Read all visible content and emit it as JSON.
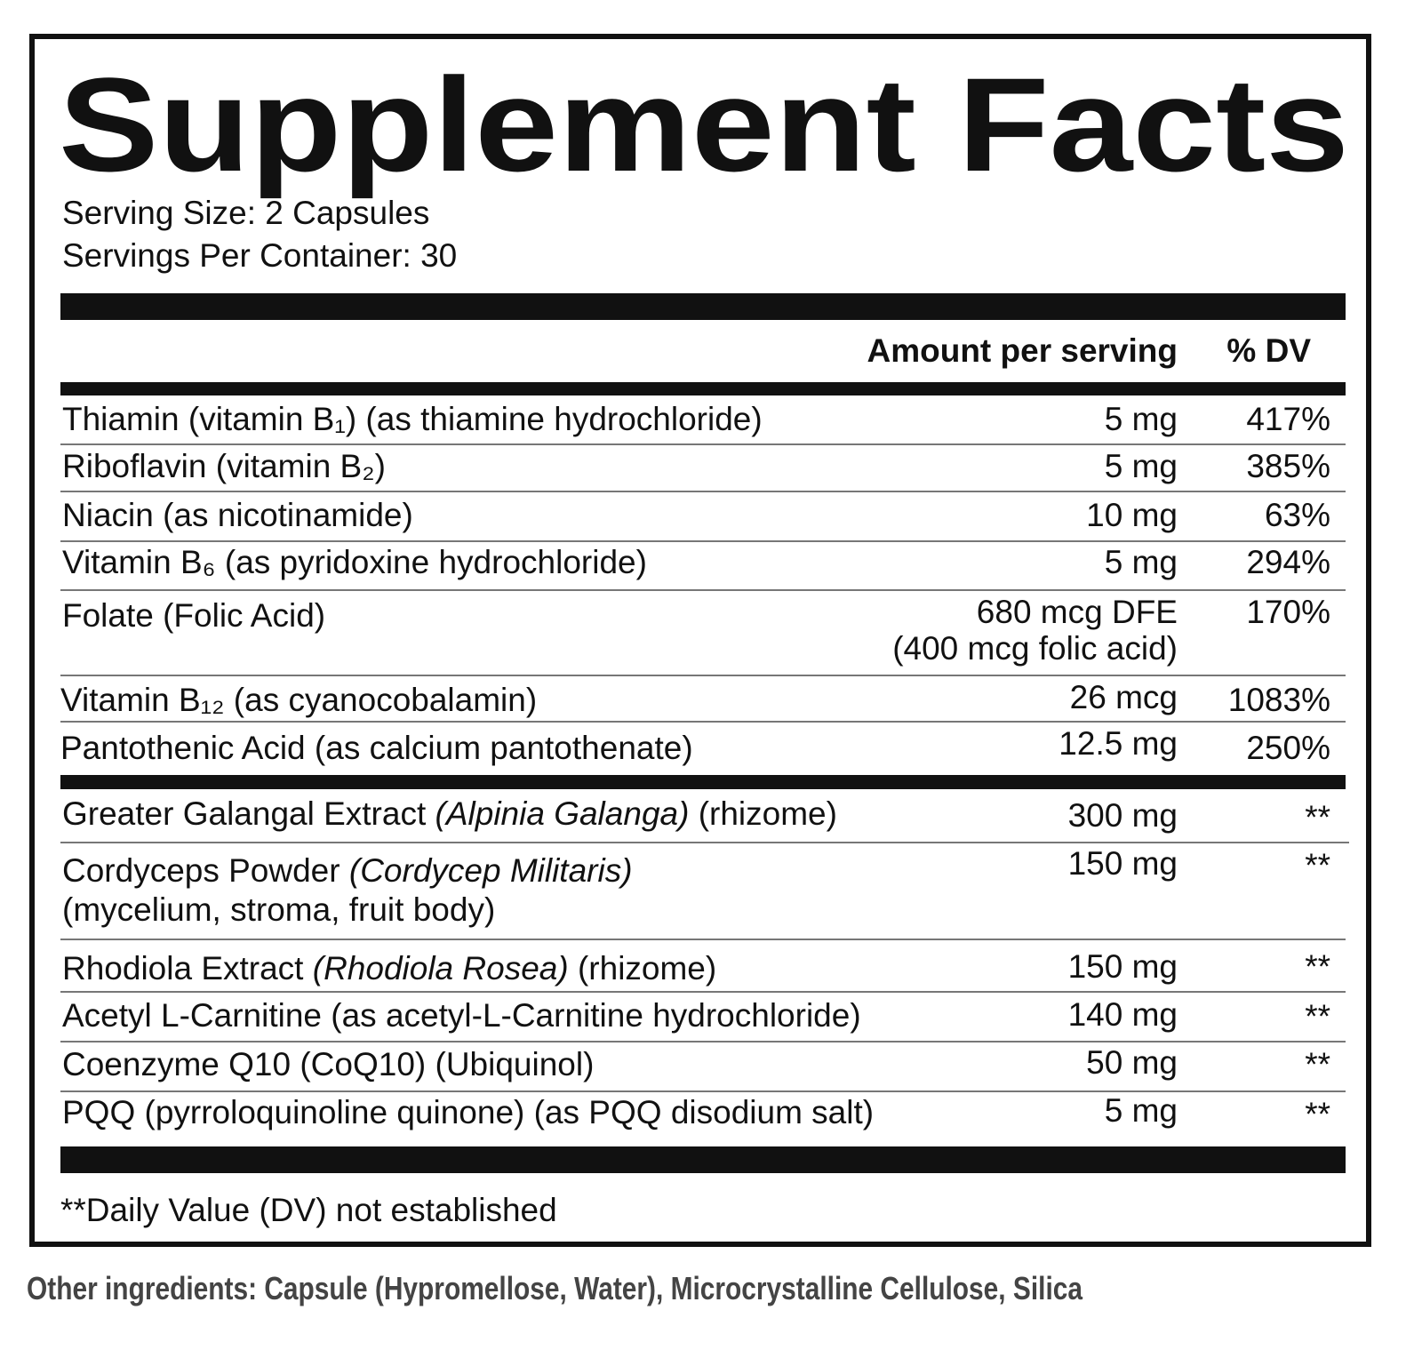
{
  "header": {
    "title": "Supplement Facts",
    "serving_size": "Serving Size: 2 Capsules",
    "servings_per_container": "Servings Per Container: 30"
  },
  "table": {
    "columns": {
      "amount": "Amount per serving",
      "dv": "% DV"
    },
    "vitamins": [
      {
        "name": "Thiamin (vitamin B₁) (as thiamine hydrochloride)",
        "amount": "5 mg",
        "dv": "417%"
      },
      {
        "name": "Riboflavin (vitamin B₂)",
        "amount": "5 mg",
        "dv": "385%"
      },
      {
        "name": "Niacin (as nicotinamide)",
        "amount": "10 mg",
        "dv": "63%"
      },
      {
        "name": "Vitamin B₆ (as pyridoxine hydrochloride)",
        "amount": "5 mg",
        "dv": "294%"
      },
      {
        "name": "Folate (Folic Acid)",
        "amount": "680 mcg DFE",
        "amount_note": "(400 mcg folic acid)",
        "dv": "170%"
      },
      {
        "name": "Vitamin B₁₂ (as cyanocobalamin)",
        "amount": "26 mcg",
        "dv": "1083%"
      },
      {
        "name": "Pantothenic Acid (as calcium pantothenate)",
        "amount": "12.5 mg",
        "dv": "250%"
      }
    ],
    "botanicals": [
      {
        "name": "Greater Galangal Extract",
        "latin": "(Alpinia Galanga)",
        "part": "(rhizome)",
        "amount": "300 mg",
        "dv": "**"
      },
      {
        "name": "Cordyceps Powder",
        "latin": "(Cordycep Militaris)",
        "part": "(mycelium, stroma, fruit body)",
        "amount": "150 mg",
        "dv": "**"
      },
      {
        "name": "Rhodiola Extract",
        "latin": "(Rhodiola Rosea)",
        "part": "(rhizome)",
        "amount": "150 mg",
        "dv": "**"
      },
      {
        "name": "Acetyl L-Carnitine (as acetyl-L-Carnitine hydrochloride)",
        "amount": "140 mg",
        "dv": "**"
      },
      {
        "name": "Coenzyme Q10 (CoQ10) (Ubiquinol)",
        "amount": "50 mg",
        "dv": "**"
      },
      {
        "name": "PQQ (pyrroloquinoline quinone) (as PQQ disodium salt)",
        "amount": "5 mg",
        "dv": "**"
      }
    ]
  },
  "footnote": "**Daily Value (DV) not established",
  "other_ingredients": "Other ingredients: Capsule (Hypromellose, Water), Microcrystalline Cellulose, Silica"
}
